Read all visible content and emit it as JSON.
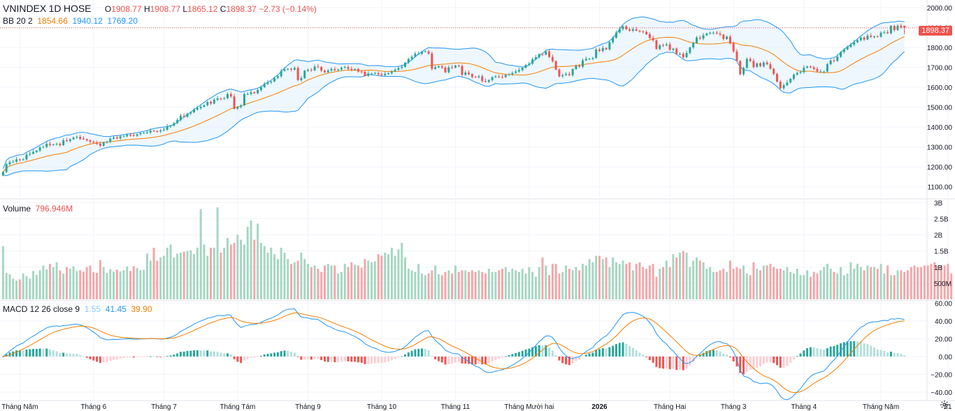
{
  "header": {
    "symbol": "VNINDEX",
    "interval": "1D",
    "exchange": "HOSE",
    "ohlc": {
      "o_label": "O",
      "o": "1908.77",
      "h_label": "H",
      "h": "1908.77",
      "l_label": "L",
      "l": "1865.12",
      "c_label": "C",
      "c": "1898.37",
      "change": "−2.73 (−0.14%)"
    },
    "bb": {
      "label": "BB 20 2",
      "basis": "1854.66",
      "upper": "1940.12",
      "lower": "1769.20"
    }
  },
  "last_price_tag": "1898.37",
  "volume_legend": {
    "label": "Volume",
    "value": "796.946M"
  },
  "macd_legend": {
    "label": "MACD 12 26 close 9",
    "hist": "1.55",
    "macd": "41.45",
    "signal": "39.90"
  },
  "colors": {
    "up": "#26a69a",
    "down": "#ef5350",
    "up_volume": "#a5d6c2",
    "down_volume": "#f4a6a9",
    "bb_basis": "#f57c00",
    "bb_band": "#2196f3",
    "bb_fill": "#e3f2fd",
    "macd_line": "#2196f3",
    "signal_line": "#f57c00",
    "hist_up_strong": "#26a69a",
    "hist_up_weak": "#b2dfdb",
    "hist_down_strong": "#ef5350",
    "hist_down_weak": "#ffcdd2"
  },
  "chart_data": [
    {
      "type": "candlestick",
      "title": "VNINDEX 1D HOSE",
      "y_ticks": [
        1100,
        1200,
        1300,
        1400,
        1500,
        1600,
        1700,
        1800,
        1900,
        2000
      ],
      "y_tick_labels": [
        "1100.00",
        "1200.00",
        "1300.00",
        "1400.00",
        "1500.00",
        "1600.00",
        "1700.00",
        "1800.00",
        "1900.00",
        "2000.00"
      ],
      "ylim": [
        1050,
        2010
      ],
      "x_tick_labels": [
        "Tháng Năm",
        "Tháng 6",
        "Tháng 7",
        "Tháng Tám",
        "Tháng 9",
        "Tháng 10",
        "Tháng 11",
        "Tháng Mười hai",
        "2026",
        "Tháng Hai",
        "Tháng 3",
        "Tháng 4",
        "Tháng Năm",
        "21"
      ],
      "x_tick_bars": [
        5,
        27,
        48,
        70,
        91,
        113,
        135,
        157,
        178,
        199,
        218,
        239,
        262,
        282
      ],
      "close": [
        1175,
        1214,
        1224,
        1226,
        1238,
        1235,
        1238,
        1262,
        1266,
        1275,
        1282,
        1298,
        1300,
        1316,
        1310,
        1313,
        1316,
        1309,
        1334,
        1330,
        1339,
        1347,
        1351,
        1342,
        1339,
        1333,
        1326,
        1322,
        1316,
        1306,
        1323,
        1326,
        1342,
        1348,
        1343,
        1354,
        1354,
        1361,
        1359,
        1356,
        1364,
        1370,
        1371,
        1373,
        1382,
        1379,
        1378,
        1383,
        1387,
        1403,
        1407,
        1420,
        1436,
        1457,
        1452,
        1468,
        1474,
        1488,
        1495,
        1502,
        1510,
        1526,
        1518,
        1537,
        1544,
        1541,
        1545,
        1566,
        1554,
        1492,
        1501,
        1509,
        1566,
        1566,
        1575,
        1570,
        1586,
        1600,
        1617,
        1624,
        1629,
        1647,
        1655,
        1682,
        1690,
        1692,
        1688,
        1697,
        1636,
        1646,
        1683,
        1688,
        1685,
        1704,
        1702,
        1683,
        1675,
        1684,
        1691,
        1685,
        1689,
        1698,
        1701,
        1692,
        1688,
        1691,
        1679,
        1677,
        1657,
        1669,
        1669,
        1671,
        1665,
        1660,
        1667,
        1671,
        1680,
        1688,
        1697,
        1702,
        1723,
        1742,
        1753,
        1769,
        1769,
        1779,
        1780,
        1769,
        1692,
        1700,
        1706,
        1699,
        1675,
        1700,
        1698,
        1709,
        1707,
        1662,
        1674,
        1666,
        1652,
        1650,
        1655,
        1631,
        1627,
        1636,
        1650,
        1654,
        1652,
        1651,
        1662,
        1665,
        1672,
        1679,
        1686,
        1698,
        1712,
        1719,
        1740,
        1750,
        1767,
        1764,
        1780,
        1752,
        1731,
        1689,
        1655,
        1661,
        1666,
        1661,
        1691,
        1708,
        1703,
        1735,
        1742,
        1743,
        1747,
        1789,
        1782,
        1797,
        1790,
        1826,
        1848,
        1875,
        1892,
        1906,
        1891,
        1884,
        1891,
        1884,
        1880,
        1878,
        1866,
        1847,
        1836,
        1792,
        1811,
        1810,
        1815,
        1788,
        1794,
        1767,
        1767,
        1751,
        1772,
        1800,
        1822,
        1850,
        1844,
        1861,
        1870,
        1873,
        1874,
        1869,
        1864,
        1842,
        1854,
        1820,
        1780,
        1732,
        1665,
        1697,
        1742,
        1732,
        1702,
        1720,
        1706,
        1724,
        1715,
        1693,
        1667,
        1628,
        1595,
        1610,
        1624,
        1642,
        1663,
        1672,
        1676,
        1698,
        1704,
        1700,
        1692,
        1679,
        1679,
        1679,
        1716,
        1734,
        1732,
        1753,
        1777,
        1790,
        1803,
        1814,
        1826,
        1836,
        1849,
        1840,
        1859,
        1853,
        1855,
        1854,
        1874,
        1876,
        1871,
        1908,
        1887,
        1909,
        1901,
        1898.37
      ],
      "open": [
        1157,
        1175,
        1214,
        1224,
        1226,
        1238,
        1235,
        1238,
        1262,
        1266,
        1275,
        1282,
        1298,
        1300,
        1316,
        1310,
        1313,
        1316,
        1309,
        1334,
        1330,
        1339,
        1347,
        1351,
        1342,
        1339,
        1333,
        1326,
        1322,
        1316,
        1306,
        1323,
        1326,
        1342,
        1348,
        1343,
        1354,
        1354,
        1361,
        1359,
        1356,
        1364,
        1370,
        1371,
        1373,
        1382,
        1379,
        1378,
        1383,
        1387,
        1403,
        1407,
        1420,
        1436,
        1457,
        1452,
        1468,
        1474,
        1488,
        1495,
        1502,
        1510,
        1526,
        1518,
        1537,
        1544,
        1541,
        1545,
        1566,
        1554,
        1492,
        1501,
        1509,
        1566,
        1566,
        1575,
        1570,
        1586,
        1600,
        1617,
        1624,
        1629,
        1647,
        1655,
        1682,
        1690,
        1692,
        1688,
        1697,
        1636,
        1646,
        1683,
        1688,
        1685,
        1704,
        1702,
        1683,
        1675,
        1684,
        1691,
        1685,
        1689,
        1698,
        1701,
        1692,
        1688,
        1691,
        1679,
        1677,
        1657,
        1669,
        1669,
        1671,
        1665,
        1660,
        1667,
        1671,
        1680,
        1688,
        1697,
        1702,
        1723,
        1742,
        1753,
        1769,
        1769,
        1779,
        1780,
        1769,
        1692,
        1700,
        1706,
        1699,
        1675,
        1700,
        1698,
        1709,
        1707,
        1662,
        1674,
        1666,
        1652,
        1650,
        1655,
        1631,
        1627,
        1636,
        1650,
        1654,
        1652,
        1651,
        1662,
        1665,
        1672,
        1679,
        1686,
        1698,
        1712,
        1719,
        1740,
        1750,
        1767,
        1764,
        1780,
        1752,
        1731,
        1689,
        1655,
        1661,
        1666,
        1661,
        1691,
        1708,
        1703,
        1735,
        1742,
        1743,
        1747,
        1789,
        1782,
        1797,
        1790,
        1826,
        1848,
        1875,
        1892,
        1906,
        1891,
        1884,
        1891,
        1884,
        1880,
        1878,
        1866,
        1847,
        1836,
        1792,
        1811,
        1810,
        1815,
        1788,
        1794,
        1767,
        1767,
        1751,
        1772,
        1800,
        1822,
        1850,
        1844,
        1861,
        1870,
        1873,
        1874,
        1869,
        1864,
        1842,
        1854,
        1820,
        1780,
        1732,
        1665,
        1697,
        1742,
        1732,
        1702,
        1720,
        1706,
        1724,
        1715,
        1693,
        1667,
        1628,
        1595,
        1610,
        1624,
        1642,
        1663,
        1672,
        1676,
        1698,
        1704,
        1700,
        1692,
        1679,
        1679,
        1679,
        1716,
        1734,
        1732,
        1753,
        1777,
        1790,
        1803,
        1814,
        1826,
        1836,
        1849,
        1840,
        1859,
        1853,
        1855,
        1854,
        1874,
        1876,
        1871,
        1908,
        1887,
        1909,
        1908.77
      ],
      "last": {
        "open": 1908.77,
        "high": 1908.77,
        "low": 1865.12,
        "close": 1898.37
      },
      "bb_last": {
        "basis": 1854.66,
        "upper": 1940.12,
        "lower": 1769.2
      }
    },
    {
      "type": "bar",
      "title": "Volume",
      "unit": "M",
      "y_ticks": [
        500,
        1000,
        1500,
        2000,
        2500,
        3000
      ],
      "y_tick_labels": [
        "500M",
        "1B",
        "1.5B",
        "2B",
        "2.5B",
        "3B"
      ],
      "ylim": [
        0,
        3050
      ],
      "values": [
        1650,
        820,
        780,
        640,
        580,
        620,
        800,
        720,
        640,
        880,
        760,
        900,
        1050,
        930,
        1100,
        1000,
        1150,
        900,
        800,
        1000,
        950,
        1020,
        880,
        900,
        860,
        1000,
        1050,
        840,
        820,
        1220,
        1000,
        820,
        940,
        860,
        920,
        870,
        900,
        1020,
        880,
        1030,
        970,
        900,
        920,
        1420,
        1200,
        1600,
        1200,
        1300,
        1350,
        1600,
        1700,
        1300,
        1420,
        1450,
        1480,
        1500,
        1520,
        1400,
        1600,
        2800,
        1700,
        1350,
        1600,
        1600,
        2850,
        1450,
        1600,
        1900,
        1700,
        1750,
        2000,
        1850,
        1700,
        2250,
        2450,
        1850,
        2350,
        1750,
        1650,
        1450,
        1600,
        1400,
        1250,
        1600,
        1450,
        1250,
        1100,
        1150,
        1200,
        1450,
        1250,
        1100,
        1000,
        1050,
        950,
        850,
        1050,
        1100,
        1050,
        1050,
        800,
        850,
        1100,
        1000,
        1150,
        1070,
        1050,
        980,
        1250,
        1200,
        1150,
        1180,
        1400,
        1350,
        1450,
        1400,
        1600,
        1350,
        1550,
        1750,
        1300,
        950,
        900,
        850,
        1100,
        800,
        750,
        800,
        900,
        1050,
        780,
        750,
        850,
        900,
        800,
        1050,
        850,
        900,
        900,
        850,
        900,
        850,
        900,
        850,
        800,
        950,
        850,
        850,
        900,
        950,
        1000,
        850,
        950,
        900,
        850,
        950,
        800,
        1000,
        850,
        700,
        1000,
        1300,
        1050,
        750,
        1100,
        1100,
        800,
        850,
        1050,
        950,
        900,
        1000,
        900,
        1100,
        1050,
        1250,
        1150,
        1350,
        1350,
        1250,
        1300,
        1000,
        1300,
        1150,
        1100,
        1200,
        1100,
        1150,
        900,
        1100,
        1150,
        1000,
        950,
        1050,
        1100,
        700,
        950,
        1000,
        1200,
        1000,
        1400,
        1300,
        1450,
        1500,
        1450,
        1000,
        1200,
        1300,
        1200,
        1150,
        950,
        1000,
        850,
        850,
        900,
        950,
        850,
        1200,
        950,
        1000,
        950,
        1050,
        800,
        750,
        1150,
        950,
        900,
        1050,
        1050,
        1100,
        1000,
        950,
        950,
        900,
        1000,
        850,
        800,
        950,
        750,
        750,
        900,
        700,
        850,
        800,
        900,
        1000,
        1100,
        950,
        850,
        800,
        1000,
        750,
        800,
        1150,
        950,
        1100,
        1000,
        900,
        1050,
        1000,
        1000,
        950,
        1100,
        800,
        1050,
        750,
        750,
        900,
        900,
        850,
        900,
        1000,
        1050,
        1000,
        1000,
        1050,
        1050,
        1100,
        1150,
        1050,
        1050,
        1050,
        1100,
        796.946
      ]
    },
    {
      "type": "line",
      "title": "MACD 12 26 close 9",
      "y_ticks": [
        -40,
        -20,
        0,
        20,
        40,
        60
      ],
      "y_tick_labels": [
        "−40.00",
        "−20.00",
        "0.00",
        "20.00",
        "40.00",
        "60.00"
      ],
      "ylim": [
        -48,
        62
      ],
      "series": [
        {
          "name": "Histogram",
          "values_from": "MACD minus Signal"
        },
        {
          "name": "MACD"
        },
        {
          "name": "Signal"
        }
      ],
      "last": {
        "histogram": 1.55,
        "macd": 41.45,
        "signal": 39.9
      }
    }
  ]
}
